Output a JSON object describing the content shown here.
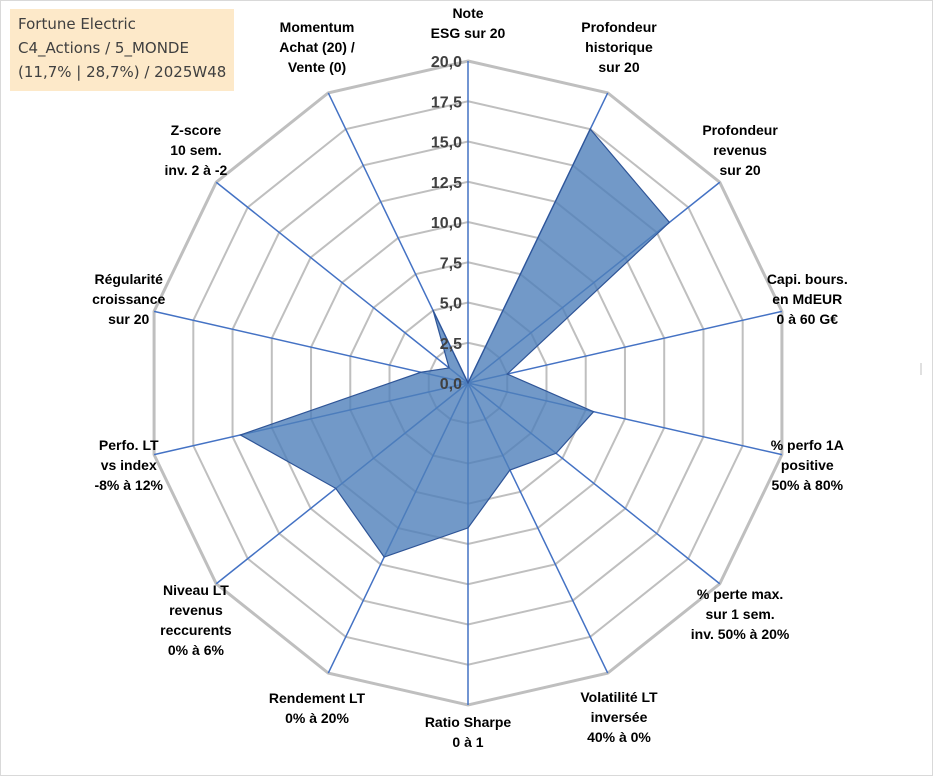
{
  "info_box": {
    "line1": "Fortune Electric",
    "line2": "C4_Actions / 5_MONDE",
    "line3": "(11,7% | 28,7%) / 2025W48",
    "background": "#fde9c9"
  },
  "colors": {
    "grid": "#bfbfbf",
    "spoke": "#4472c4",
    "fill": "#4f7fba",
    "outline": "#2f5597"
  },
  "chart_data": {
    "type": "radar",
    "title": "",
    "rlim": [
      0,
      20
    ],
    "grid": true,
    "ticks": [
      "0,0",
      "2,5",
      "5,0",
      "7,5",
      "10,0",
      "12,5",
      "15,0",
      "17,5",
      "20,0"
    ],
    "axes": [
      [
        "Note",
        "ESG sur 20"
      ],
      [
        "Profondeur",
        "historique",
        "sur 20"
      ],
      [
        "Profondeur",
        "revenus",
        "sur 20"
      ],
      [
        "Capi. bours.",
        "en MdEUR",
        "0 à 60 G€"
      ],
      [
        "% perfo 1A",
        "positive",
        "50% à 80%"
      ],
      [
        "% perte max.",
        "sur 1 sem.",
        "inv. 50% à 20%"
      ],
      [
        "Volatilité LT",
        "inversée",
        "40% à 0%"
      ],
      [
        "Ratio Sharpe",
        "0 à 1"
      ],
      [
        "Rendement LT",
        "0% à 20%"
      ],
      [
        "Niveau LT",
        "revenus",
        "reccurents",
        "0% à 6%"
      ],
      [
        "Perfo. LT",
        "vs index",
        "-8% à 12%"
      ],
      [
        "Régularité",
        "croissance",
        "sur 20"
      ],
      [
        "Z-score",
        "10 sem.",
        "inv. 2 à -2"
      ],
      [
        "Momentum",
        "Achat (20) /",
        "Vente (0)"
      ]
    ],
    "series": [
      {
        "values": [
          0.0,
          17.5,
          16.0,
          2.5,
          8.0,
          7.0,
          6.0,
          9.0,
          12.0,
          10.5,
          14.5,
          3.0,
          1.5,
          5.0
        ]
      }
    ]
  }
}
